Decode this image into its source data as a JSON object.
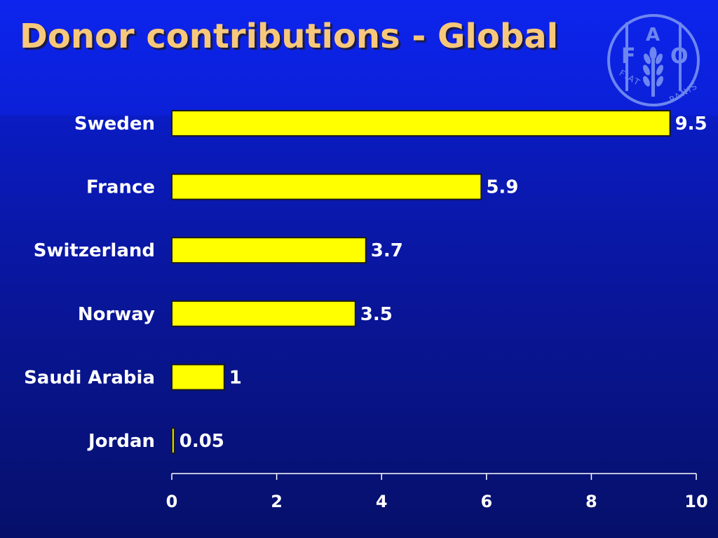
{
  "slide": {
    "title": "Donor contributions - Global"
  },
  "logo": {
    "icon": "fao-logo-icon",
    "letters": [
      "F",
      "A",
      "O"
    ],
    "motto_left": "FIAT",
    "motto_right": "PANIS",
    "color": "#6d86f0"
  },
  "colors": {
    "bar_fill": "#ffff00",
    "bar_stroke": "#1a1a1a",
    "title": "#f8c87a",
    "text": "#ffffff",
    "axis": "#ffffff"
  },
  "chart_data": {
    "type": "bar",
    "orientation": "horizontal",
    "title": "Donor contributions - Global",
    "xlabel": "",
    "ylabel": "",
    "categories": [
      "Sweden",
      "France",
      "Switzerland",
      "Norway",
      "Saudi Arabia",
      "Jordan"
    ],
    "values": [
      9.5,
      5.9,
      3.7,
      3.5,
      1,
      0.05
    ],
    "value_labels": [
      "9.5",
      "5.9",
      "3.7",
      "3.5",
      "1",
      "0.05"
    ],
    "xlim": [
      0,
      10
    ],
    "x_ticks": [
      0,
      2,
      4,
      6,
      8,
      10
    ],
    "x_tick_labels": [
      "0",
      "2",
      "4",
      "6",
      "8",
      "10"
    ],
    "grid": false,
    "legend": "none"
  }
}
